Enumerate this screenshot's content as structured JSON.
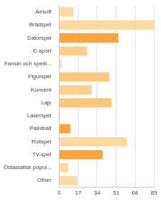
{
  "chart_data": {
    "type": "bar",
    "orientation": "horizontal",
    "categories": [
      "Airsoft",
      "Brädspel",
      "Datorspel",
      "E-sport",
      "Fansin och spelti...",
      "Figurspel",
      "Konvent",
      "Lajv",
      "Laserspel",
      "Paintball",
      "Rollspel",
      "TV-spel",
      "Östasiatisk popul...",
      "Other"
    ],
    "values": [
      13,
      85,
      53,
      25,
      2,
      45,
      29,
      47,
      1,
      10,
      61,
      39,
      8,
      16
    ],
    "colors": [
      "#fdd9a4",
      "#fdd9a4",
      "#f9a53a",
      "#fdcf8c",
      "#fdd9a4",
      "#fbc77a",
      "#fdcf8c",
      "#fbc77a",
      "#fdd9a4",
      "#f9a53a",
      "#fdd9a4",
      "#f9a53a",
      "#fdd9a4",
      "#fdd9a4"
    ],
    "xlim": [
      0,
      85
    ],
    "xticks": [
      0,
      17,
      34,
      51,
      68,
      85
    ],
    "grid": true
  }
}
